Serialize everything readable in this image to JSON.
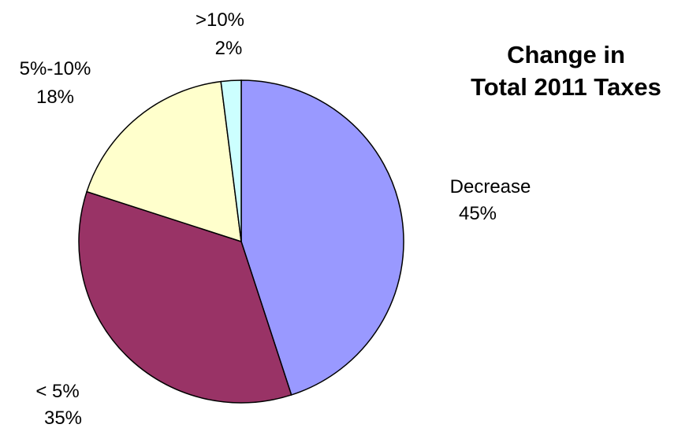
{
  "chart_data": {
    "type": "pie",
    "title_lines": [
      "Change in",
      "Total 2011 Taxes"
    ],
    "slices": [
      {
        "name": "Decrease",
        "value": 45,
        "label": "45%",
        "color": "#9999FF"
      },
      {
        "name": "< 5%",
        "value": 35,
        "label": "35%",
        "color": "#993366"
      },
      {
        "name": "5%-10%",
        "value": 18,
        "label": "18%",
        "color": "#FFFFCC"
      },
      {
        "name": ">10%",
        "value": 2,
        "label": "2%",
        "color": "#CCFFFF"
      }
    ],
    "start": "12 o'clock",
    "direction": "clockwise"
  }
}
